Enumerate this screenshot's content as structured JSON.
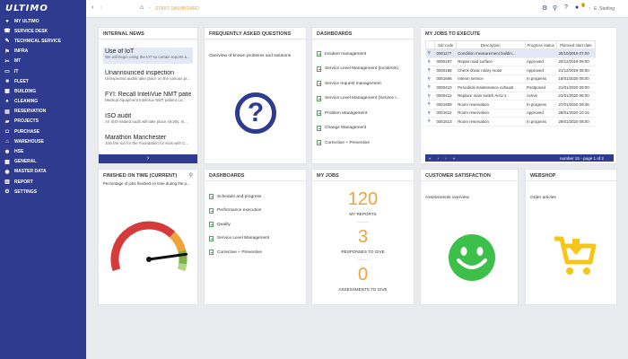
{
  "app": {
    "name": "ULTIMO"
  },
  "sidebar": {
    "items": [
      {
        "label": "My Ultimo",
        "icon": "user-icon"
      },
      {
        "label": "Service desk",
        "icon": "headset-icon"
      },
      {
        "label": "Technical service",
        "icon": "wrench-icon"
      },
      {
        "label": "Infra",
        "icon": "signpost-icon"
      },
      {
        "label": "MT",
        "icon": "tools-icon"
      },
      {
        "label": "IT",
        "icon": "monitor-icon"
      },
      {
        "label": "Fleet",
        "icon": "truck-icon"
      },
      {
        "label": "Building",
        "icon": "building-icon"
      },
      {
        "label": "Cleaning",
        "icon": "broom-icon"
      },
      {
        "label": "Reservation",
        "icon": "calendar-icon"
      },
      {
        "label": "Projects",
        "icon": "folder-icon"
      },
      {
        "label": "Purchase",
        "icon": "cart-icon"
      },
      {
        "label": "Warehouse",
        "icon": "warehouse-icon"
      },
      {
        "label": "HSE",
        "icon": "fire-icon"
      },
      {
        "label": "General",
        "icon": "grid-icon"
      },
      {
        "label": "Master data",
        "icon": "database-icon"
      },
      {
        "label": "Report",
        "icon": "chart-icon"
      },
      {
        "label": "Settings",
        "icon": "gear-icon"
      }
    ]
  },
  "topbar": {
    "breadcrumb": "START DASHBOARD",
    "user": "E. Sterling",
    "notification_count": "3"
  },
  "panels": {
    "internal_news": {
      "title": "INTERNAL NEWS",
      "items": [
        {
          "title": "Use of IoT",
          "body": "We will begin using the IoT so certain reports a..."
        },
        {
          "title": "Unannounced inspection",
          "body": "Unexpected audits take place on the various pr..."
        },
        {
          "title": "FYI: Recall InteliVue NMT patient c...",
          "body": "Medical equipment InteliVue NMT patient ca..."
        },
        {
          "title": "ISO audit",
          "body": "An ISO-related audit will take place shortly. In..."
        },
        {
          "title": "Marathon Manchester",
          "body": "Join the run for the Foundation for Kids with C..."
        }
      ],
      "next_label": "›"
    },
    "faq": {
      "title": "FREQUENTLY ASKED QUESTIONS",
      "subtitle": "Overview of known problems and solutions",
      "icon_glyph": "?"
    },
    "dashboards_top": {
      "title": "DASHBOARDS",
      "items": [
        "Incident management",
        "Service Level Management (Incidents)",
        "Service request management",
        "Service Level Management (Service r...",
        "Problem Management",
        "Change Management",
        "Corrective + Preventive"
      ]
    },
    "my_jobs": {
      "title": "MY JOBS TO EXECUTE",
      "columns": [
        "Job code",
        "Description",
        "Progress status",
        "Planned start date"
      ],
      "rows": [
        {
          "code": "0001177",
          "description": "Condition measurement buildin...",
          "status": "",
          "date": "30/10/2019 07:00"
        },
        {
          "code": "0000187",
          "description": "Repair road surface",
          "status": "Approved",
          "date": "20/12/2019 09:00"
        },
        {
          "code": "0000188",
          "description": "Check shear rotary motor",
          "status": "Approved",
          "date": "21/12/2019 08:00"
        },
        {
          "code": "0001666",
          "description": "Interim service",
          "status": "In progress",
          "date": "18/01/2020 08:00"
        },
        {
          "code": "0000410",
          "description": "Periodical maintenance exhaust",
          "status": "Postponed",
          "date": "21/01/2020 09:00"
        },
        {
          "code": "0000412",
          "description": "Replace main switch AHU 1",
          "status": "Active",
          "date": "21/01/2020 08:00"
        },
        {
          "code": "0001609",
          "description": "Room reservation",
          "status": "In progress",
          "date": "27/01/2020 09:45"
        },
        {
          "code": "0001612",
          "description": "Room reservation",
          "status": "Approved",
          "date": "28/01/2020 10:15"
        },
        {
          "code": "0001613",
          "description": "Room reservation",
          "status": "In progress",
          "date": "29/01/2020 08:00"
        }
      ],
      "pager_text": "number 15 - page 1 of 2",
      "pager_buttons": [
        "«",
        "‹",
        "›",
        "»"
      ]
    },
    "finished_on_time": {
      "title": "FINISHED ON TIME (CURRENT)",
      "subtitle": "Percentage of jobs finished on time during the p...",
      "gauge_fraction": 0.88,
      "colors": {
        "red": "#d63a3a",
        "orange": "#f0a33a",
        "green": "#7cb342",
        "light_green": "#aed581"
      }
    },
    "dashboards_bottom": {
      "title": "DASHBOARDS",
      "items": [
        "Schedule and progress",
        "Performance execution",
        "Quality",
        "Service Level Management",
        "Corrective + Preventive"
      ]
    },
    "my_jobs_counts": {
      "title": "MY JOBS",
      "stats": [
        {
          "value": "120",
          "label": "MY REPORTS"
        },
        {
          "value": "3",
          "label": "RESPONSES TO GIVE"
        },
        {
          "value": "0",
          "label": "ASSESSMENTS TO GIVE"
        }
      ]
    },
    "customer_satisfaction": {
      "title": "CUSTOMER SATISFACTION",
      "subtitle": "Assessments overview",
      "face_color": "#3cc04a"
    },
    "webshop": {
      "title": "WEBSHOP",
      "subtitle": "Order articles",
      "cart_color": "#f5c518"
    }
  },
  "colors": {
    "sidebar": "#2e3b8f",
    "accent": "#f0a33a"
  }
}
